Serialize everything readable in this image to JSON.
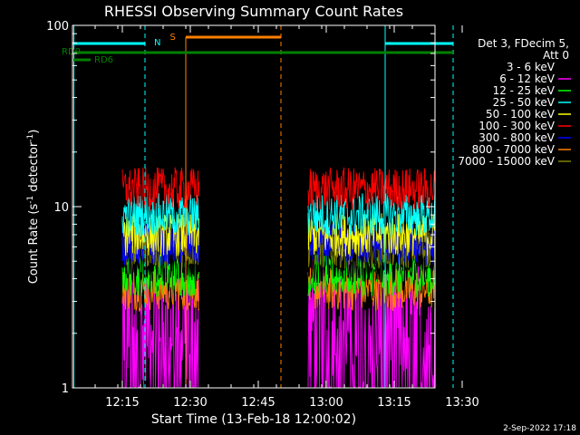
{
  "chart_data": {
    "type": "line",
    "title": "RHESSI Observing Summary Count Rates",
    "xlabel": "Start Time (13-Feb-18 12:00:02)",
    "ylabel_main": "Count Rate (s",
    "ylabel_sup1": "-1",
    "ylabel_mid": " detector",
    "ylabel_sup2": "-1",
    "ylabel_end": ")",
    "yscale": "log",
    "ylim": [
      1,
      100
    ],
    "xlim_minutes": [
      0,
      80
    ],
    "x_ticks": [
      {
        "label": "12:15",
        "min": 15
      },
      {
        "label": "12:30",
        "min": 30
      },
      {
        "label": "12:45",
        "min": 45
      },
      {
        "label": "13:00",
        "min": 60
      },
      {
        "label": "13:15",
        "min": 75
      },
      {
        "label": "13:30",
        "min": 90
      }
    ],
    "y_ticks": [
      {
        "label": "1",
        "value": 1
      },
      {
        "label": "10",
        "value": 10
      },
      {
        "label": "100",
        "value": 100
      }
    ],
    "legend": {
      "header1": "Det 3, FDecim 5,",
      "header2": "Att 0",
      "placement": "right"
    },
    "series": [
      {
        "name": "3 - 6 keV",
        "color": "#000000",
        "level": 5.0
      },
      {
        "name": "6 - 12 keV",
        "color": "#ff00ff",
        "level": 2.4
      },
      {
        "name": "12 - 25 keV",
        "color": "#00ff00",
        "level": 4.2
      },
      {
        "name": "25 - 50 keV",
        "color": "#00ffff",
        "level": 9.0
      },
      {
        "name": "50 - 100 keV",
        "color": "#ffff00",
        "level": 7.0
      },
      {
        "name": "100 - 300 keV",
        "color": "#ff0000",
        "level": 12.5
      },
      {
        "name": "300 - 800 keV",
        "color": "#0000ff",
        "level": 6.2
      },
      {
        "name": "800 - 7000 keV",
        "color": "#ff8000",
        "level": 3.5
      },
      {
        "name": "7000 - 15000 keV",
        "color": "#808000",
        "level": 6.0
      }
    ],
    "data_intervals_minutes": [
      [
        11,
        28
      ],
      [
        52,
        80
      ]
    ],
    "flags": [
      {
        "label": "N",
        "color": "#00ffff"
      },
      {
        "label": "S",
        "color": "#ff8000"
      },
      {
        "label": "RD0",
        "color": "#008000"
      },
      {
        "label": "RD6",
        "color": "#008000"
      }
    ],
    "timestamp": "2-Sep-2022 17:18"
  }
}
